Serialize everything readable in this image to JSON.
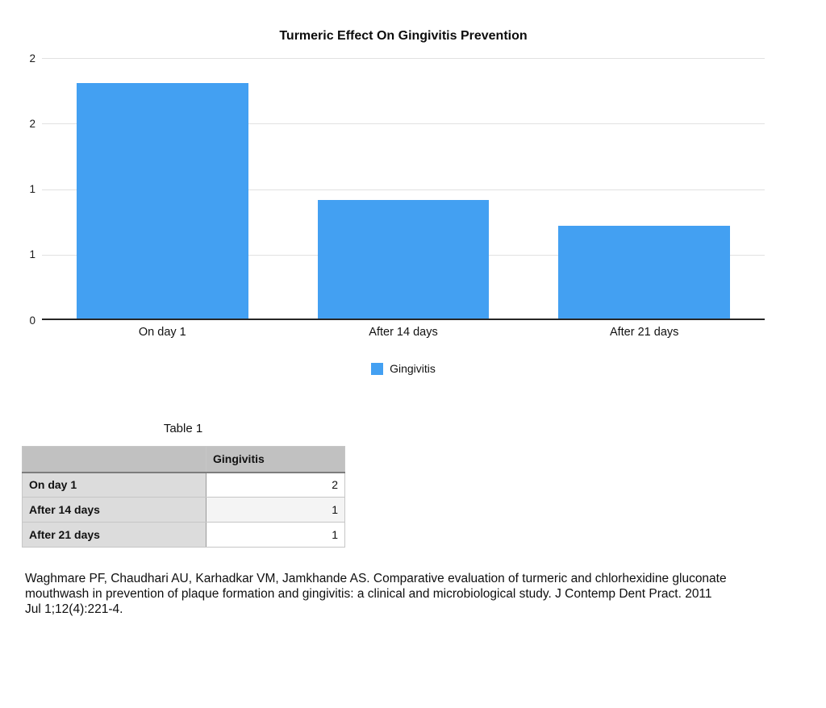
{
  "chart_data": {
    "type": "bar",
    "title": "Turmeric Effect On Gingivitis Prevention",
    "categories": [
      "On day 1",
      "After 14 days",
      "After 21 days"
    ],
    "series": [
      {
        "name": "Gingivitis",
        "values": [
          1.81,
          0.91,
          0.71
        ]
      }
    ],
    "xlabel": "",
    "ylabel": "",
    "ylim": [
      0,
      2
    ],
    "grid": true,
    "yticks": [
      {
        "value": 2.0,
        "label": "2"
      },
      {
        "value": 1.5,
        "label": "2"
      },
      {
        "value": 1.0,
        "label": "1"
      },
      {
        "value": 0.5,
        "label": "1"
      },
      {
        "value": 0.0,
        "label": "0"
      }
    ],
    "legend_position": "bottom",
    "legend": [
      {
        "label": "Gingivitis",
        "color": "#43a0f2"
      }
    ],
    "bar_color": "#43a0f2",
    "gridline_color": "#e1e1e1",
    "axis_color": "#262626"
  },
  "table": {
    "title": "Table 1",
    "columns": [
      "",
      "Gingivitis"
    ],
    "rows": [
      {
        "label": "On day 1",
        "values": [
          "2"
        ]
      },
      {
        "label": "After 14 days",
        "values": [
          "1"
        ]
      },
      {
        "label": "After 21 days",
        "values": [
          "1"
        ]
      }
    ]
  },
  "citation": {
    "lines": [
      "Waghmare PF, Chaudhari AU, Karhadkar VM, Jamkhande AS. Comparative evaluation of turmeric and chlorhexidine gluconate",
      "mouthwash in prevention of plaque formation and gingivitis: a clinical and microbiological study. J Contemp Dent Pract. 2011",
      "Jul 1;12(4):221-4."
    ]
  }
}
